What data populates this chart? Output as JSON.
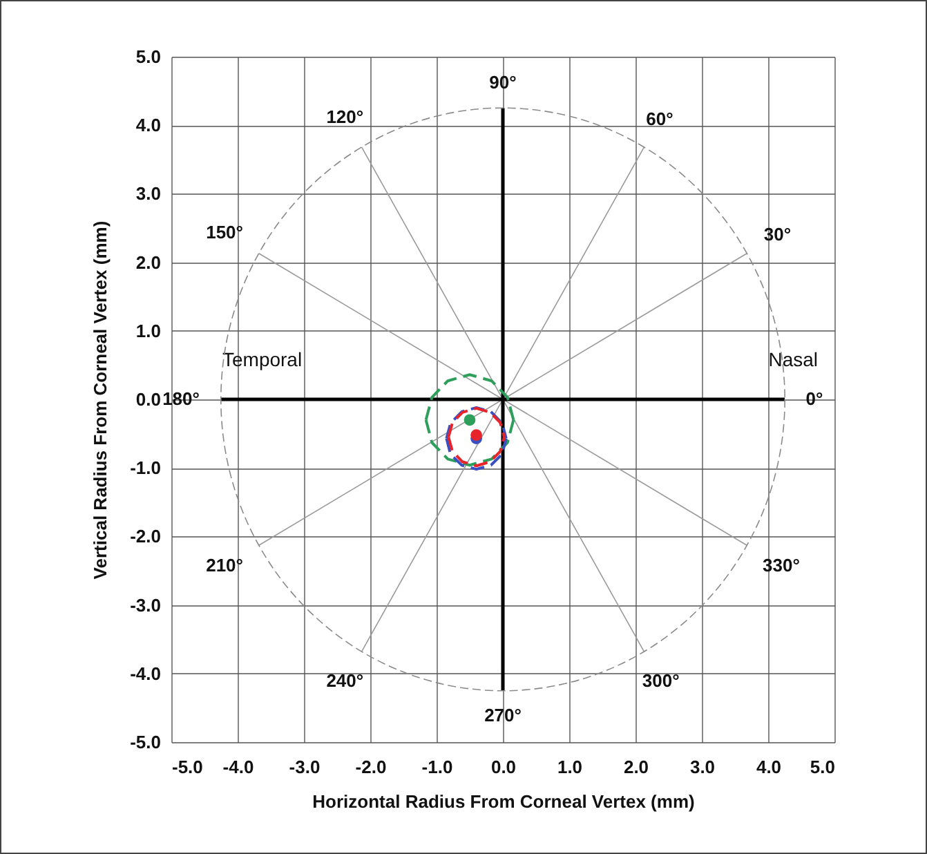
{
  "chart_data": {
    "type": "line",
    "xlabel": "Horizontal Radius From Corneal Vertex (mm)",
    "ylabel": "Vertical Radius From Corneal Vertex (mm)",
    "xlim": [
      -5,
      5
    ],
    "ylim": [
      -5,
      5
    ],
    "xticks": [
      {
        "value": -5,
        "label": "-5.0"
      },
      {
        "value": -4,
        "label": "-4.0"
      },
      {
        "value": -3,
        "label": "-3.0"
      },
      {
        "value": -2,
        "label": "-2.0"
      },
      {
        "value": -1,
        "label": "-1.0"
      },
      {
        "value": 0,
        "label": "0.0"
      },
      {
        "value": 1,
        "label": "1.0"
      },
      {
        "value": 2,
        "label": "2.0"
      },
      {
        "value": 3,
        "label": "3.0"
      },
      {
        "value": 4,
        "label": "4.0"
      },
      {
        "value": 5,
        "label": "5.0"
      }
    ],
    "yticks": [
      {
        "value": -5,
        "label": "-5.0"
      },
      {
        "value": -4,
        "label": "-4.0"
      },
      {
        "value": -3,
        "label": "-3.0"
      },
      {
        "value": -2,
        "label": "-2.0"
      },
      {
        "value": -1,
        "label": "-1.0"
      },
      {
        "value": 0,
        "label": "0.0"
      },
      {
        "value": 1,
        "label": "1.0"
      },
      {
        "value": 2,
        "label": "2.0"
      },
      {
        "value": 3,
        "label": "3.0"
      },
      {
        "value": 4,
        "label": "4.0"
      },
      {
        "value": 5,
        "label": "5.0"
      }
    ],
    "grid": true,
    "series": [
      {
        "color": "#9a9a9a",
        "x": [
          -3.68,
          3.68
        ],
        "values": [
          -2.13,
          2.13
        ]
      },
      {
        "color": "#9a9a9a",
        "x": [
          -2.13,
          2.13
        ],
        "values": [
          -3.68,
          3.68
        ]
      },
      {
        "color": "#9a9a9a",
        "x": [
          -2.13,
          2.13
        ],
        "values": [
          3.68,
          -3.68
        ]
      },
      {
        "color": "#9a9a9a",
        "x": [
          -3.68,
          3.68
        ],
        "values": [
          2.13,
          -2.13
        ]
      },
      {
        "color": "#000000",
        "x": [
          -4.25,
          4.25
        ],
        "values": [
          0,
          0
        ]
      },
      {
        "color": "#000000",
        "x": [
          0,
          0
        ],
        "values": [
          -4.25,
          4.25
        ]
      },
      {
        "color": "#2e9e5b",
        "line_style": "dashed",
        "x": [
          -1.16,
          -1.07,
          -0.83,
          -0.5,
          -0.17,
          0.07,
          0.16
        ],
        "values": [
          -0.3,
          0.03,
          0.27,
          0.36,
          0.27,
          0.03,
          -0.3
        ]
      },
      {
        "color": "#2e9e5b",
        "line_style": "dashed",
        "x": [
          -1.16,
          -1.07,
          -0.83,
          -0.5,
          -0.17,
          0.07,
          0.16
        ],
        "values": [
          -0.3,
          -0.63,
          -0.87,
          -0.96,
          -0.87,
          -0.63,
          -0.3
        ]
      },
      {
        "color": "#3a4fc0",
        "line_style": "dashed",
        "x": [
          -0.85,
          -0.79,
          -0.62,
          -0.4,
          -0.18,
          -0.01,
          0.05
        ],
        "values": [
          -0.57,
          -0.35,
          -0.18,
          -0.12,
          -0.18,
          -0.35,
          -0.57
        ]
      },
      {
        "color": "#3a4fc0",
        "line_style": "dashed",
        "x": [
          -0.85,
          -0.79,
          -0.62,
          -0.4,
          -0.18,
          -0.01,
          0.05
        ],
        "values": [
          -0.57,
          -0.8,
          -0.96,
          -1.02,
          -0.96,
          -0.8,
          -0.57
        ]
      },
      {
        "color": "#e8242b",
        "line_style": "dashed",
        "x": [
          -0.82,
          -0.76,
          -0.61,
          -0.4,
          -0.19,
          -0.04,
          0.02
        ],
        "values": [
          -0.55,
          -0.34,
          -0.19,
          -0.13,
          -0.19,
          -0.34,
          -0.55
        ]
      },
      {
        "color": "#e8242b",
        "line_style": "dashed",
        "x": [
          -0.82,
          -0.76,
          -0.61,
          -0.4,
          -0.19,
          -0.04,
          0.02
        ],
        "values": [
          -0.55,
          -0.76,
          -0.91,
          -0.97,
          -0.91,
          -0.76,
          -0.55
        ]
      },
      {
        "type": "scatter",
        "marker": "circle",
        "color": "#2e9e5b",
        "x": [
          -0.5
        ],
        "values": [
          -0.3
        ]
      },
      {
        "type": "scatter",
        "marker": "circle",
        "color": "#3a4fc0",
        "x": [
          -0.4
        ],
        "values": [
          -0.57
        ]
      },
      {
        "type": "scatter",
        "marker": "circle",
        "color": "#e8242b",
        "x": [
          -0.4
        ],
        "values": [
          -0.52
        ]
      }
    ],
    "annotations": [
      "Temporal",
      "Nasal",
      {
        "text": "90°",
        "x": 0,
        "y": 4.25
      },
      {
        "text": "60°",
        "x": 2.13,
        "y": 3.68
      },
      {
        "text": "30°",
        "x": 3.68,
        "y": 2.13
      },
      {
        "text": "0°",
        "x": 4.25,
        "y": 0
      },
      {
        "text": "330°",
        "x": 3.68,
        "y": -2.13
      },
      {
        "text": "300°",
        "x": 2.13,
        "y": -3.68
      },
      {
        "text": "270°",
        "x": 0,
        "y": -4.25
      },
      {
        "text": "240°",
        "x": -2.13,
        "y": -3.68
      },
      {
        "text": "210°",
        "x": -3.68,
        "y": -2.13
      },
      {
        "text": "180°",
        "x": -4.25,
        "y": 0
      },
      {
        "text": "150°",
        "x": -3.68,
        "y": 2.13
      },
      {
        "text": "120°",
        "x": -2.13,
        "y": 3.68
      }
    ]
  }
}
